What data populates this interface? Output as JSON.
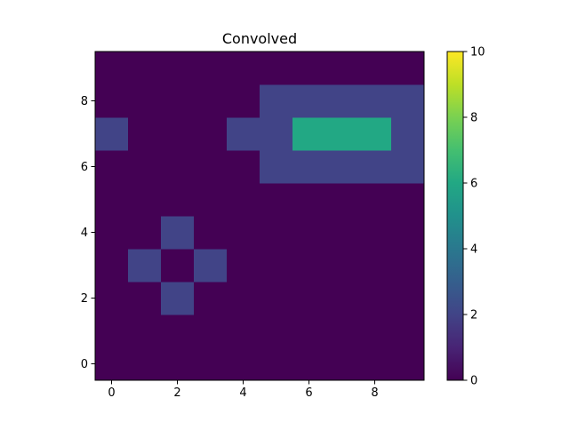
{
  "chart_data": {
    "type": "heatmap",
    "title": "Convolved",
    "xlabel": "",
    "ylabel": "",
    "x_ticks": [
      0,
      2,
      4,
      6,
      8
    ],
    "y_ticks": [
      0,
      2,
      4,
      6,
      8
    ],
    "xlim": [
      -0.5,
      9.5
    ],
    "ylim": [
      -0.5,
      9.5
    ],
    "origin": "lower",
    "colormap": "viridis",
    "colorbar": {
      "vmin": 0,
      "vmax": 10,
      "ticks": [
        0,
        2,
        4,
        6,
        8,
        10
      ]
    },
    "grid": false,
    "values": [
      [
        0,
        0,
        0,
        0,
        0,
        0,
        0,
        0,
        0,
        0
      ],
      [
        0,
        0,
        0,
        0,
        0,
        0,
        0,
        0,
        0,
        0
      ],
      [
        0,
        0,
        2,
        0,
        0,
        0,
        0,
        0,
        0,
        0
      ],
      [
        0,
        2,
        0,
        2,
        0,
        0,
        0,
        0,
        0,
        0
      ],
      [
        0,
        0,
        2,
        0,
        0,
        0,
        0,
        0,
        0,
        0
      ],
      [
        0,
        0,
        0,
        0,
        0,
        0,
        0,
        0,
        0,
        0
      ],
      [
        0,
        0,
        0,
        0,
        0,
        2,
        2,
        2,
        2,
        2
      ],
      [
        2,
        0,
        0,
        0,
        2,
        2,
        6,
        6,
        6,
        2
      ],
      [
        0,
        0,
        0,
        0,
        0,
        2,
        2,
        2,
        2,
        2
      ],
      [
        0,
        0,
        0,
        0,
        0,
        0,
        0,
        0,
        0,
        0
      ]
    ]
  }
}
